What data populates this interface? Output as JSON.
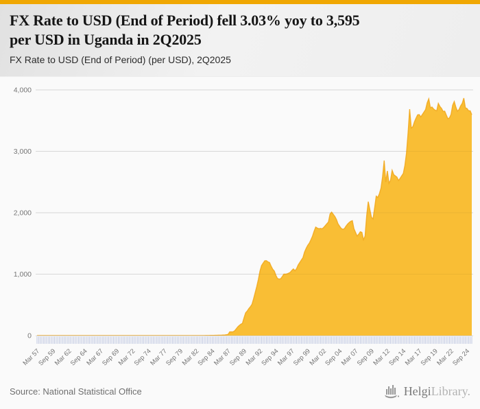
{
  "accent_color": "#F0A702",
  "header": {
    "title_lines": [
      "FX Rate to USD (End of Period) fell 3.03% yoy to 3,595",
      "per USD in Uganda in 2Q2025"
    ],
    "subtitle": "FX Rate to USD (End of Period) (per USD), 2Q2025"
  },
  "footer": {
    "source": "Source: National Statistical Office",
    "logo_icon": "bar-chart-boat-icon",
    "brand_primary": "Helgi",
    "brand_secondary": "Library."
  },
  "colors": {
    "area_fill": "#F9BE35",
    "area_stroke": "#F1A81F",
    "grid": "#e3e3e3",
    "grid_overlay": "rgba(0,0,0,0.05)",
    "axis_line": "#d6d6d6",
    "quarter_tick": "#b9c2de",
    "axis_text": "#757575"
  },
  "chart_data": {
    "type": "area",
    "title": "FX Rate to USD (End of Period) (per USD), 2Q2025",
    "series_name": "FX Rate to USD (End of Period)",
    "unit": "per USD",
    "latest_value": 3595,
    "yoy_change_pct": -3.03,
    "ylim": [
      0,
      4000
    ],
    "y_ticks": [
      "0",
      "1,000",
      "2,000",
      "3,000",
      "4,000"
    ],
    "x_tick_every_n_points": 10,
    "x_tick_labels": [
      "Mar 57",
      "Sep 59",
      "Mar 62",
      "Sep 64",
      "Mar 67",
      "Sep 69",
      "Mar 72",
      "Sep 74",
      "Mar 77",
      "Sep 79",
      "Mar 82",
      "Sep 84",
      "Mar 87",
      "Sep 89",
      "Mar 92",
      "Sep 94",
      "Mar 97",
      "Sep 99",
      "Mar 02",
      "Sep 04",
      "Mar 07",
      "Sep 09",
      "Mar 12",
      "Sep 14",
      "Mar 17",
      "Sep 19",
      "Mar 22",
      "Sep 24"
    ],
    "values": [
      0.07,
      0.07,
      0.07,
      0.07,
      0.07,
      0.07,
      0.07,
      0.07,
      0.07,
      0.07,
      0.07,
      0.07,
      0.07,
      0.07,
      0.07,
      0.07,
      0.07,
      0.07,
      0.07,
      0.07,
      0.07,
      0.07,
      0.07,
      0.07,
      0.07,
      0.07,
      0.07,
      0.07,
      0.07,
      0.07,
      0.07,
      0.07,
      0.07,
      0.07,
      0.07,
      0.07,
      0.07,
      0.07,
      0.07,
      0.07,
      0.07,
      0.07,
      0.07,
      0.07,
      0.07,
      0.07,
      0.07,
      0.07,
      0.07,
      0.07,
      0.07,
      0.07,
      0.07,
      0.07,
      0.07,
      0.07,
      0.07,
      0.07,
      0.07,
      0.07,
      0.07,
      0.07,
      0.07,
      0.07,
      0.07,
      0.07,
      0.07,
      0.07,
      0.07,
      0.07,
      0.07,
      0.07,
      0.07,
      0.07,
      0.07,
      0.07,
      0.08,
      0.08,
      0.08,
      0.08,
      0.08,
      0.08,
      0.08,
      0.08,
      0.08,
      0.08,
      0.08,
      0.08,
      0.08,
      0.08,
      0.08,
      0.08,
      0.08,
      0.08,
      0.08,
      0.08,
      0.1,
      0.3,
      0.5,
      0.8,
      0.85,
      0.9,
      0.95,
      1.0,
      1.1,
      1.2,
      1.4,
      1.5,
      2.0,
      2.8,
      3.2,
      3.6,
      4.2,
      5.0,
      5.5,
      6.0,
      7,
      9,
      11,
      14,
      20,
      60,
      60,
      60,
      75,
      106,
      140,
      165,
      185,
      200,
      290,
      370,
      400,
      440,
      470,
      510,
      600,
      700,
      800,
      915,
      1050,
      1140,
      1180,
      1217,
      1220,
      1200,
      1190,
      1130,
      1080,
      1050,
      980,
      930,
      920,
      925,
      960,
      1000,
      1000,
      1005,
      1015,
      1030,
      1060,
      1085,
      1055,
      1090,
      1150,
      1190,
      1230,
      1270,
      1360,
      1420,
      1470,
      1505,
      1560,
      1620,
      1700,
      1766,
      1750,
      1740,
      1745,
      1738,
      1760,
      1790,
      1820,
      1850,
      1980,
      2010,
      1975,
      1940,
      1890,
      1820,
      1780,
      1745,
      1730,
      1740,
      1780,
      1815,
      1840,
      1860,
      1870,
      1740,
      1680,
      1620,
      1650,
      1690,
      1680,
      1560,
      1620,
      1950,
      2180,
      2050,
      1925,
      1900,
      2080,
      2270,
      2250,
      2310,
      2400,
      2590,
      2850,
      2500,
      2680,
      2480,
      2530,
      2690,
      2620,
      2600,
      2580,
      2525,
      2560,
      2600,
      2640,
      2770,
      2970,
      3300,
      3687,
      3380,
      3400,
      3480,
      3540,
      3593,
      3598,
      3560,
      3600,
      3640,
      3680,
      3790,
      3855,
      3710,
      3721,
      3690,
      3670,
      3660,
      3780,
      3730,
      3700,
      3650,
      3654,
      3590,
      3531,
      3545,
      3600,
      3750,
      3810,
      3720,
      3654,
      3680,
      3740,
      3780,
      3866,
      3707,
      3698,
      3660,
      3660,
      3595
    ]
  }
}
